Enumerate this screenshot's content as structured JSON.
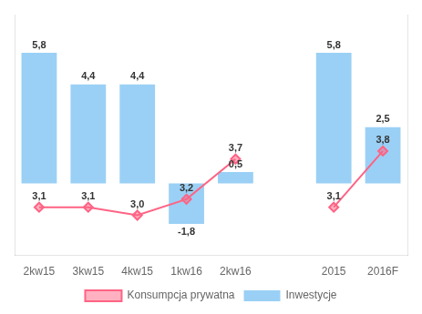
{
  "chart_data": {
    "type": "bar",
    "categories": [
      "2kw15",
      "3kw15",
      "4kw15",
      "1kw16",
      "2kw16",
      null,
      "2015",
      "2016F"
    ],
    "series": [
      {
        "name": "Inwestycje",
        "type": "bar",
        "values": [
          5.8,
          4.4,
          4.4,
          -1.8,
          0.5,
          null,
          5.8,
          2.5
        ],
        "value_labels": [
          "5,8",
          "4,4",
          "4,4",
          "-1,8",
          "0,5",
          null,
          "5,8",
          "2,5"
        ]
      },
      {
        "name": "Konsumpcja prywatna",
        "type": "line",
        "axis": "y2",
        "marker": "diamond",
        "values": [
          3.1,
          3.1,
          3.0,
          3.2,
          3.7,
          null,
          3.1,
          3.8
        ],
        "value_labels": [
          "3,1",
          "3,1",
          "3,0",
          "3,2",
          "3,7",
          null,
          "3,1",
          "3,8"
        ]
      }
    ],
    "ylim": [
      -3.2,
      7.5
    ],
    "y2lim": [
      2.5,
      5.5
    ],
    "grid": false,
    "legend": "bottom",
    "data_labels": true,
    "tick_labels": "x"
  }
}
